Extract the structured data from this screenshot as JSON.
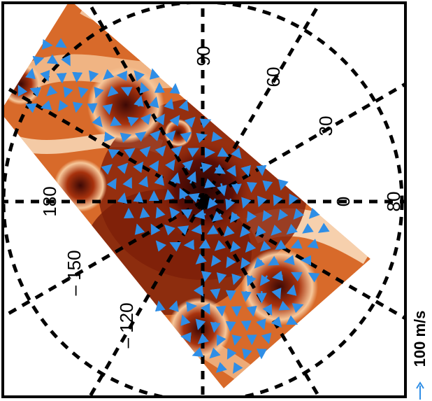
{
  "colors": {
    "vector_arrows": "#2f8ee6",
    "frame": "#000000",
    "grid": "#000000",
    "colormap": [
      "#ffffff",
      "#f6c79a",
      "#e07a30",
      "#a8320d",
      "#5c0f06",
      "#2a0503"
    ]
  },
  "grid_labels": {
    "lon_90": "90",
    "lon_60": "60",
    "lon_30": "30",
    "lon_0": "0",
    "lon_180": "180",
    "lon_m150": "– 150",
    "lon_m120": "– 120",
    "lat_80": "80"
  },
  "scale_bar": {
    "label": "100 m/s",
    "arrow_icon": "up-arrow-icon"
  }
}
